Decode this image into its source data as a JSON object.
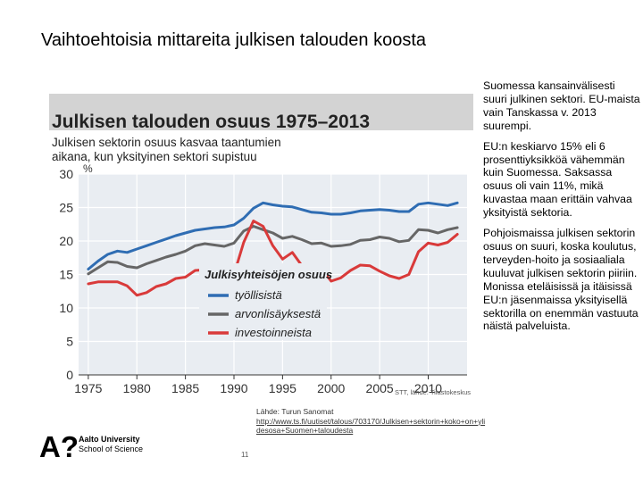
{
  "slide": {
    "title": "Vaihtoehtoisia mittareita julkisen talouden koosta",
    "page_number": "11"
  },
  "side_text": [
    "Suomessa kansainvälisesti suuri julkinen sektori. EU-maista vain Tanskassa v. 2013 suurempi.",
    "EU:n keskiarvo 15% eli 6 prosenttiyksikköä vähemmän kuin Suomessa. Saksassa osuus oli vain 11%, mikä kuvastaa maan erittäin vahvaa yksityistä sektoria.",
    "Pohjoismaissa julkisen sektorin osuus on suuri, koska koulutus, terveyden-hoito ja sosiaaliala kuuluvat julkisen sektorin piiriin. Monissa eteläisissä ja itäisissä EU:n jäsenmaissa yksityisellä sektorilla on enemmän vastuuta näistä palveluista."
  ],
  "source": {
    "label": "Lähde: Turun Sanomat",
    "url": "http://www.ts.fi/uutiset/talous/703170/Julkisen+sektorin+koko+on+yli",
    "url2": "desosa+Suomen+taloudesta"
  },
  "logo": {
    "mark": "A?",
    "university": "Aalto University",
    "school": "School of Science"
  },
  "chart_data": {
    "type": "line",
    "title": "Julkisen talouden osuus 1975–2013",
    "subtitle_line1": "Julkisen sektorin osuus kasvaa taantumien",
    "subtitle_line2": "aikana, kun yksityinen sektori supistuu",
    "ylabel": "%",
    "ylim": [
      0,
      30
    ],
    "xlim": [
      1974,
      2014
    ],
    "yticks": [
      0,
      5,
      10,
      15,
      20,
      25,
      30
    ],
    "xticks": [
      1975,
      1980,
      1985,
      1990,
      1995,
      2000,
      2005,
      2010
    ],
    "legend_title": "Julkisyhteisöjen osuus",
    "credit": "STT, lähde: Tilastokeskus",
    "colors": {
      "title_bg": "#d3d3d3",
      "plot_bg": "#e9edf2",
      "grid": "#ffffff",
      "tyollisista": "#2f6db3",
      "arvonlisaysesta": "#666666",
      "investoinneista": "#d93a3a"
    },
    "x": [
      1975,
      1976,
      1977,
      1978,
      1979,
      1980,
      1981,
      1982,
      1983,
      1984,
      1985,
      1986,
      1987,
      1988,
      1989,
      1990,
      1991,
      1992,
      1993,
      1994,
      1995,
      1996,
      1997,
      1998,
      1999,
      2000,
      2001,
      2002,
      2003,
      2004,
      2005,
      2006,
      2007,
      2008,
      2009,
      2010,
      2011,
      2012,
      2013
    ],
    "series": [
      {
        "key": "tyollisista",
        "name": "työllisistä",
        "values": [
          15.8,
          17.0,
          18.0,
          18.5,
          18.3,
          18.8,
          19.3,
          19.8,
          20.3,
          20.8,
          21.2,
          21.6,
          21.8,
          22.0,
          22.1,
          22.4,
          23.4,
          24.9,
          25.7,
          25.4,
          25.2,
          25.1,
          24.7,
          24.3,
          24.2,
          24.0,
          24.0,
          24.2,
          24.5,
          24.6,
          24.7,
          24.6,
          24.4,
          24.4,
          25.5,
          25.7,
          25.5,
          25.3,
          25.7
        ]
      },
      {
        "key": "arvonlisaysesta",
        "name": "arvonlisäyksestä",
        "values": [
          15.1,
          16.0,
          16.9,
          16.8,
          16.2,
          16.0,
          16.6,
          17.1,
          17.6,
          18.0,
          18.5,
          19.3,
          19.6,
          19.4,
          19.2,
          19.7,
          21.5,
          22.2,
          21.7,
          21.2,
          20.4,
          20.7,
          20.2,
          19.6,
          19.7,
          19.2,
          19.3,
          19.5,
          20.1,
          20.2,
          20.6,
          20.4,
          19.9,
          20.1,
          21.7,
          21.6,
          21.2,
          21.7,
          22.0
        ]
      },
      {
        "key": "investoinneista",
        "name": "investoinneista",
        "values": [
          13.6,
          13.9,
          13.9,
          13.9,
          13.3,
          11.9,
          12.3,
          13.2,
          13.6,
          14.4,
          14.6,
          15.6,
          15.7,
          14.5,
          13.7,
          15.0,
          19.8,
          23.0,
          22.2,
          19.3,
          17.3,
          18.3,
          16.3,
          15.6,
          15.9,
          14.0,
          14.5,
          15.6,
          16.4,
          16.3,
          15.5,
          14.8,
          14.4,
          15.0,
          18.4,
          19.7,
          19.4,
          19.8,
          21.0
        ]
      }
    ]
  }
}
